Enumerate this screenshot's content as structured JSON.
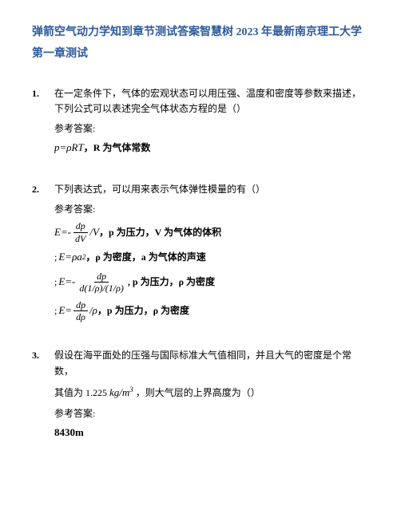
{
  "header": {
    "title": "弹箭空气动力学知到章节测试答案智慧树 2023 年最新南京理工大学",
    "subtitle": "第一章测试"
  },
  "questions": {
    "q1": {
      "num": "1.",
      "text": "在一定条件下，气体的宏观状态可以用压强、温度和密度等参数来描述，下列公式可以表述完全气体状态方程的是（）",
      "answer_label": "参考答案:",
      "formula": "p=ρRT",
      "formula_desc": "，R 为气体常数"
    },
    "q2": {
      "num": "2.",
      "text": "下列表达式，可以用来表示气体弹性模量的有（）",
      "answer_label": "参考答案:",
      "f1": {
        "prefix": "E=-",
        "num": "dp",
        "den": "dV",
        "suffix": "/V",
        "desc": "，p 为压力，V 为气体的体积"
      },
      "f2": {
        "prefix": "E=",
        "formula": "ρa",
        "sup": "2",
        "desc": "，ρ 为密度，a 为气体的声速"
      },
      "f3": {
        "prefix": "E=-",
        "num": "dp",
        "den": "d(1/ρ)/(1/ρ)",
        "desc": ", p 为压力，ρ 为密度"
      },
      "f4": {
        "prefix": "E=",
        "num": "dp",
        "den": "dρ",
        "suffix": "/ρ",
        "desc": "，p 为压力，ρ 为密度"
      }
    },
    "q3": {
      "num": "3.",
      "text_p1": "假设在海平面处的压强与国际标准大气值相同，并且大气的密度是个常数，",
      "text_p2": "其值为 1.225",
      "unit_num": "kg/m",
      "unit_sup": "3",
      "text_p3": "，则大气层的上界高度为（）",
      "answer_label": "参考答案:",
      "answer": "8430m"
    }
  },
  "styles": {
    "title_color": "#2e5a9c",
    "text_color": "#000000",
    "bg_color": "#ffffff"
  }
}
